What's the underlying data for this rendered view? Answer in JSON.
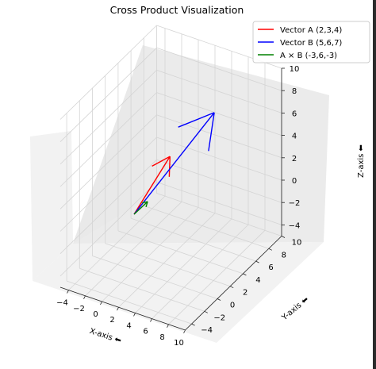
{
  "chart_data": {
    "type": "line",
    "projection": "3d",
    "title": "Cross Product Visualization",
    "xlabel": "X-axis",
    "ylabel": "Y-axis",
    "zlabel": "Z-axis",
    "xlim": [
      -5,
      10
    ],
    "ylim": [
      -5,
      10
    ],
    "zlim": [
      -5,
      10
    ],
    "xticks": [
      "−4",
      "−2",
      "0",
      "2",
      "4",
      "6",
      "8",
      "10"
    ],
    "yticks": [
      "−4",
      "−2",
      "0",
      "2",
      "4",
      "6",
      "8",
      "10"
    ],
    "zticks": [
      "−4",
      "−2",
      "0",
      "2",
      "4",
      "6",
      "8",
      "10"
    ],
    "grid": true,
    "legend_position": "top-right",
    "series": [
      {
        "name": "Vector A (2,3,4)",
        "color": "#ff0000",
        "origin": [
          0,
          0,
          0
        ],
        "vector": [
          2,
          3,
          4
        ]
      },
      {
        "name": "Vector B (5,6,7)",
        "color": "#0000ff",
        "origin": [
          0,
          0,
          0
        ],
        "vector": [
          5,
          6,
          7
        ]
      },
      {
        "name": "A × B (-3,6,-3)",
        "color": "#008000",
        "origin": [
          0,
          0,
          0
        ],
        "vector": [
          -3,
          6,
          -3
        ]
      }
    ]
  }
}
